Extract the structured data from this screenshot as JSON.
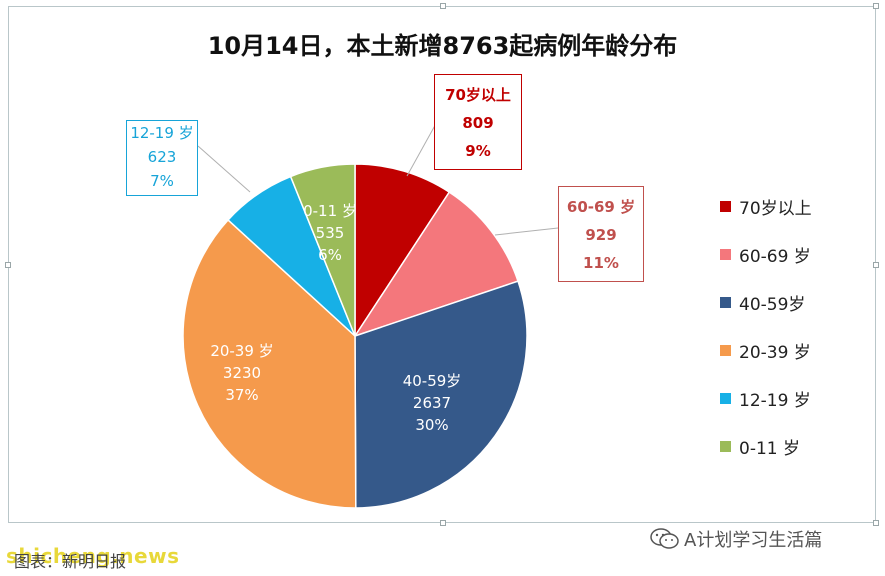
{
  "chart_data": {
    "type": "pie",
    "title": "10月14日，本土新增8763起病例年龄分布",
    "slices": [
      {
        "label": "70岁以上",
        "callout_label": "70岁以上",
        "value": 809,
        "percent": "9%",
        "color": "#c00000",
        "text_color": "#c00000",
        "label_mode": "callout"
      },
      {
        "label": "60-69 岁",
        "callout_label": "60-69 岁",
        "value": 929,
        "percent": "11%",
        "color": "#f4777c",
        "text_color": "#c0504d",
        "label_mode": "callout"
      },
      {
        "label": "40-59岁",
        "callout_label": "40-59岁",
        "value": 2637,
        "percent": "30%",
        "color": "#35598a",
        "text_color": "#ffffff",
        "label_mode": "inside"
      },
      {
        "label": "20-39 岁",
        "callout_label": "20-39 岁",
        "value": 3230,
        "percent": "37%",
        "color": "#f59a4c",
        "text_color": "#ffffff",
        "label_mode": "inside"
      },
      {
        "label": "12-19 岁",
        "callout_label": "12-19 岁",
        "value": 623,
        "percent": "7%",
        "color": "#17b0e6",
        "text_color": "#17a4d8",
        "label_mode": "callout"
      },
      {
        "label": "0-11 岁",
        "callout_label": "0-11 岁",
        "value": 535,
        "percent": "6%",
        "color": "#9bbb59",
        "text_color": "#ffffff",
        "label_mode": "inside"
      }
    ],
    "legend_position": "right"
  },
  "footer": {
    "watermark_left": "shicheng.news",
    "credit": "图表：新明日报",
    "watermark_right": "A计划学习生活篇"
  }
}
